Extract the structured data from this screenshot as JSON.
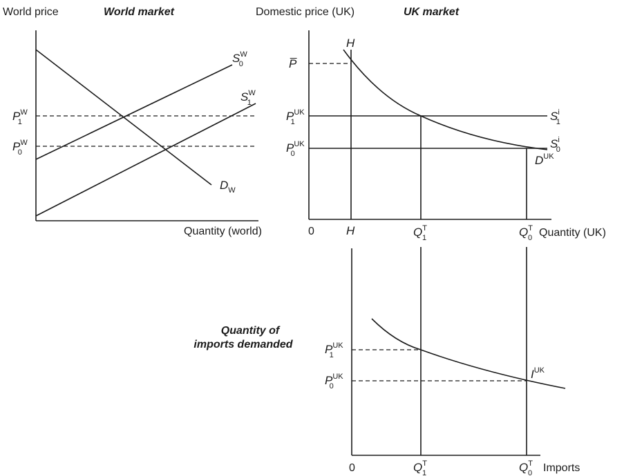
{
  "world": {
    "y_axis_label": "World price",
    "title": "World market",
    "x_axis_label": "Quantity (world)",
    "p1": {
      "base": "P",
      "sub": "1",
      "sup": "W"
    },
    "p0": {
      "base": "P",
      "sub": "0",
      "sup": "W"
    },
    "s0": {
      "base": "S",
      "sub": "0",
      "sup": "W"
    },
    "s1": {
      "base": "S",
      "sub": "1",
      "sup": "W"
    },
    "d": {
      "base": "D",
      "sub": "W"
    }
  },
  "uk": {
    "y_axis_label": "Domestic price (UK)",
    "title": "UK market",
    "x_axis_label": "Quantity (UK)",
    "h_top": "H",
    "p_bar": "P̅",
    "p1": {
      "base": "P",
      "sub": "1",
      "sup": "UK"
    },
    "p0": {
      "base": "P",
      "sub": "0",
      "sup": "UK"
    },
    "s1": {
      "base": "S",
      "sub": "1",
      "sup": "i"
    },
    "s0": {
      "base": "S",
      "sub": "0",
      "sup": "i"
    },
    "d": {
      "base": "D",
      "sup": "UK"
    },
    "origin": "0",
    "h_tick": "H",
    "q1": {
      "base": "Q",
      "sub": "1",
      "sup": "T"
    },
    "q0": {
      "base": "Q",
      "sub": "0",
      "sup": "T"
    }
  },
  "imports": {
    "title_line1": "Quantity of",
    "title_line2": "imports demanded",
    "p1": {
      "base": "P",
      "sub": "1",
      "sup": "UK"
    },
    "p0": {
      "base": "P",
      "sub": "0",
      "sup": "UK"
    },
    "i": {
      "base": "I",
      "sup": "UK"
    },
    "origin": "0",
    "q1": {
      "base": "Q",
      "sub": "1",
      "sup": "T"
    },
    "q0": {
      "base": "Q",
      "sub": "0",
      "sup": "T"
    },
    "x_axis_label": "Imports"
  }
}
